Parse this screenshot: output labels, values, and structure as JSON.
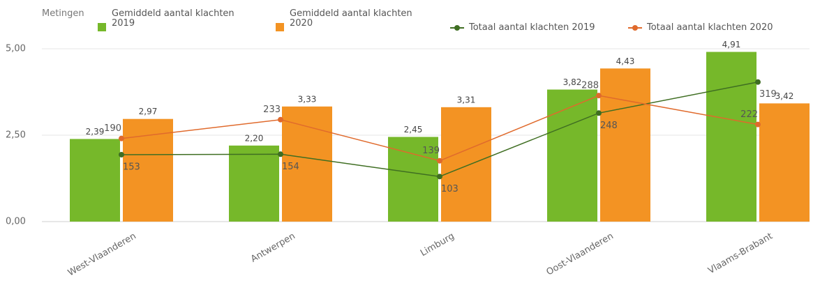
{
  "chart_data": {
    "type": "bar",
    "legend_title": "Metingen",
    "categories": [
      "West-Vlaanderen",
      "Antwerpen",
      "Limburg",
      "Oost-Vlaanderen",
      "Vlaams-Brabant"
    ],
    "series": [
      {
        "name": "Gemiddeld aantal klachten 2019",
        "type": "bar",
        "color": "#76b82a",
        "values": [
          2.39,
          2.2,
          2.45,
          3.82,
          4.91
        ],
        "value_labels": [
          "2,39",
          "2,20",
          "2,45",
          "3,82",
          "4,91"
        ]
      },
      {
        "name": "Gemiddeld aantal klachten 2020",
        "type": "bar",
        "color": "#f39323",
        "values": [
          2.97,
          3.33,
          3.31,
          4.43,
          3.42
        ],
        "value_labels": [
          "2,97",
          "3,33",
          "3,31",
          "4,43",
          "3,42"
        ]
      },
      {
        "name": "Totaal aantal klachten 2019",
        "type": "line",
        "axis": "y2",
        "color": "#3f6e22",
        "values": [
          153,
          154,
          103,
          248,
          319
        ]
      },
      {
        "name": "Totaal aantal klachten 2020",
        "type": "line",
        "axis": "y2",
        "color": "#e06a2c",
        "values": [
          190,
          233,
          139,
          288,
          222
        ]
      }
    ],
    "ylim": [
      0,
      5
    ],
    "yticks": [
      {
        "value": 0,
        "label": "0,00"
      },
      {
        "value": 2.5,
        "label": "2,50"
      },
      {
        "value": 5,
        "label": "5,00"
      }
    ],
    "y2lim": [
      0,
      395
    ],
    "grid": true
  }
}
